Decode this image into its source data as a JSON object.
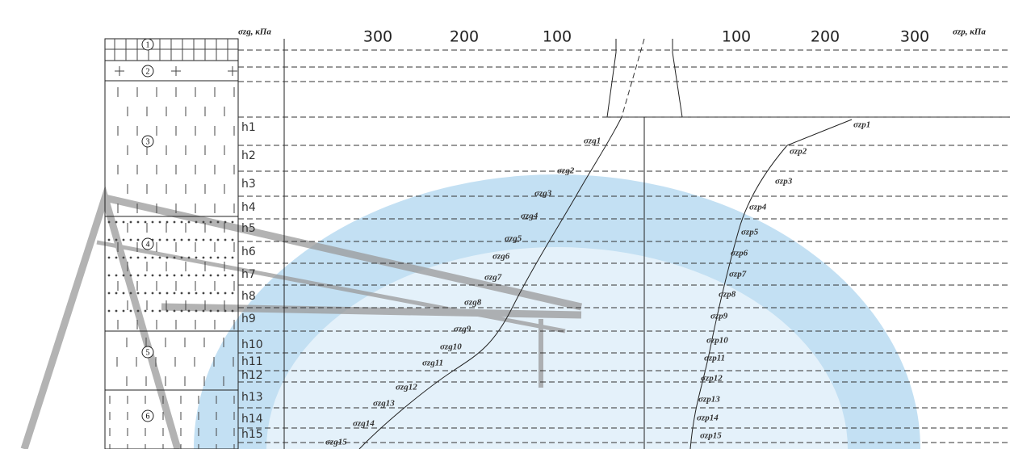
{
  "diagram": {
    "axis_left_label": "σzg, кПа",
    "axis_right_label": "σzp, кПа",
    "left_ticks": [
      "300",
      "200",
      "100"
    ],
    "right_ticks": [
      "100",
      "200",
      "300"
    ],
    "layers": [
      "1",
      "2",
      "3",
      "4",
      "5",
      "6"
    ],
    "depths": [
      "h1",
      "h2",
      "h3",
      "h4",
      "h5",
      "h6",
      "h7",
      "h8",
      "h9",
      "h10",
      "h11",
      "h12",
      "h13",
      "h14",
      "h15"
    ],
    "sigma_zg": [
      "σzg1",
      "σzg2",
      "σzg3",
      "σzg4",
      "σzg5",
      "σzg6",
      "σzg7",
      "σzg8",
      "σzg9",
      "σzg10",
      "σzg11",
      "σzg12",
      "σzg13",
      "σzg14",
      "σzg15"
    ],
    "sigma_zp": [
      "σzp1",
      "σzp2",
      "σzp3",
      "σzp4",
      "σzp5",
      "σzp6",
      "σzp7",
      "σzp8",
      "σzp9",
      "σzp10",
      "σzp11",
      "σzp12",
      "σzp13",
      "σzp14",
      "σzp15"
    ]
  }
}
